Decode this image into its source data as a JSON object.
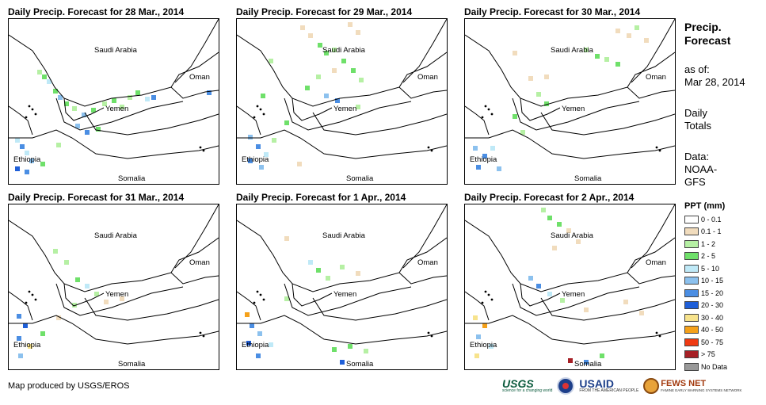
{
  "panels": [
    {
      "title": "Daily Precip. Forecast for 28 Mar., 2014"
    },
    {
      "title": "Daily Precip. Forecast for 29 Mar., 2014"
    },
    {
      "title": "Daily Precip. Forecast for 30 Mar., 2014"
    },
    {
      "title": "Daily Precip. Forecast for 31 Mar., 2014"
    },
    {
      "title": "Daily Precip. Forecast for 1 Apr., 2014"
    },
    {
      "title": "Daily Precip. Forecast for 2 Apr., 2014"
    }
  ],
  "map_labels": {
    "saudi": "Saudi Arabia",
    "oman": "Oman",
    "yemen": "Yemen",
    "ethiopia": "Ethiopia",
    "somalia": "Somalia"
  },
  "side": {
    "title_line1": "Precip.",
    "title_line2": "Forecast",
    "asof_line1": "as of:",
    "asof_line2": "Mar 28, 2014",
    "daily_line1": "Daily",
    "daily_line2": "Totals",
    "data_line1": "Data:",
    "data_line2": "NOAA-",
    "data_line3": "GFS"
  },
  "legend": {
    "title": "PPT (mm)",
    "items": [
      {
        "label": "0 - 0.1",
        "color": "#ffffff"
      },
      {
        "label": "0.1 - 1",
        "color": "#f1dcbd"
      },
      {
        "label": "1 - 2",
        "color": "#b6f0a4"
      },
      {
        "label": "2 - 5",
        "color": "#6fe06a"
      },
      {
        "label": "5 - 10",
        "color": "#bfe9f7"
      },
      {
        "label": "10 - 15",
        "color": "#8cc1ee"
      },
      {
        "label": "15 - 20",
        "color": "#4b8ee3"
      },
      {
        "label": "20 - 30",
        "color": "#1f5fd8"
      },
      {
        "label": "30 - 40",
        "color": "#f7e38c"
      },
      {
        "label": "40 - 50",
        "color": "#f5a11a"
      },
      {
        "label": "50 - 75",
        "color": "#f03a12"
      },
      {
        "label": "> 75",
        "color": "#a62026"
      },
      {
        "label": "No Data",
        "color": "#999999"
      }
    ]
  },
  "credit": "Map produced by USGS/EROS",
  "logos": {
    "usgs": "USGS",
    "usgs_sub": "science for a changing world",
    "usaid": "USAID",
    "usaid_sub": "FROM THE AMERICAN PEOPLE",
    "fews": "FEWS NET",
    "fews_sub": "FAMINE EARLY WARNING SYSTEMS NETWORK"
  }
}
